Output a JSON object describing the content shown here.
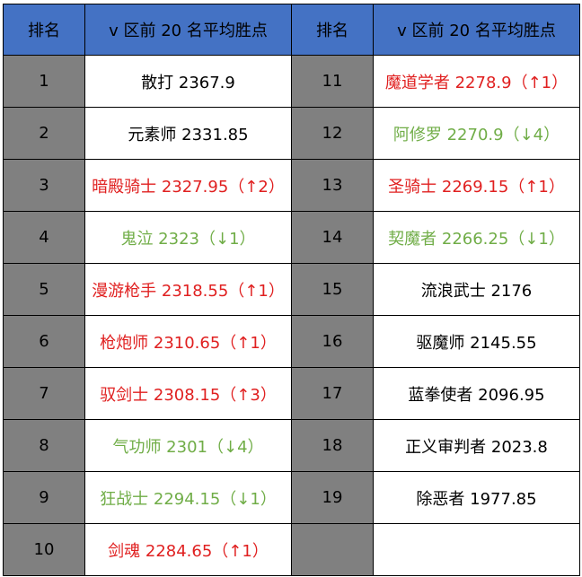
{
  "header": {
    "rank_label": "排名",
    "col_label": "v 区前 20 名平均胜点",
    "rank_label_2": "排名",
    "col_label_2": "v 区前 20 名平均胜点"
  },
  "colors": {
    "header_bg": "#4472c4",
    "rank_bg": "#808080",
    "up": "#e02020",
    "down": "#70ad47",
    "flat": "#000000"
  },
  "rows": [
    {
      "left_rank": "1",
      "left_text": "散打 2367.9",
      "left_trend": "flat",
      "right_rank": "11",
      "right_text": "魔道学者 2278.9（↑1）",
      "right_trend": "up"
    },
    {
      "left_rank": "2",
      "left_text": "元素师 2331.85",
      "left_trend": "flat",
      "right_rank": "12",
      "right_text": "阿修罗 2270.9（↓4）",
      "right_trend": "down"
    },
    {
      "left_rank": "3",
      "left_text": "暗殿骑士 2327.95（↑2）",
      "left_trend": "up",
      "right_rank": "13",
      "right_text": "圣骑士 2269.15（↑1）",
      "right_trend": "up"
    },
    {
      "left_rank": "4",
      "left_text": "鬼泣 2323（↓1）",
      "left_trend": "down",
      "right_rank": "14",
      "right_text": "契魔者 2266.25（↓1）",
      "right_trend": "down"
    },
    {
      "left_rank": "5",
      "left_text": "漫游枪手 2318.55（↑1）",
      "left_trend": "up",
      "right_rank": "15",
      "right_text": "流浪武士 2176",
      "right_trend": "flat"
    },
    {
      "left_rank": "6",
      "left_text": "枪炮师 2310.65（↑1）",
      "left_trend": "up",
      "right_rank": "16",
      "right_text": "驱魔师 2145.55",
      "right_trend": "flat"
    },
    {
      "left_rank": "7",
      "left_text": "驭剑士 2308.15（↑3）",
      "left_trend": "up",
      "right_rank": "17",
      "right_text": "蓝拳使者 2096.95",
      "right_trend": "flat"
    },
    {
      "left_rank": "8",
      "left_text": "气功师 2301（↓4）",
      "left_trend": "down",
      "right_rank": "18",
      "right_text": "正义审判者 2023.8",
      "right_trend": "flat"
    },
    {
      "left_rank": "9",
      "left_text": "狂战士 2294.15（↓1）",
      "left_trend": "down",
      "right_rank": "19",
      "right_text": "除恶者 1977.85",
      "right_trend": "flat"
    },
    {
      "left_rank": "10",
      "left_text": "剑魂 2284.65（↑1）",
      "left_trend": "up",
      "right_rank": "",
      "right_text": "",
      "right_trend": "flat"
    }
  ]
}
